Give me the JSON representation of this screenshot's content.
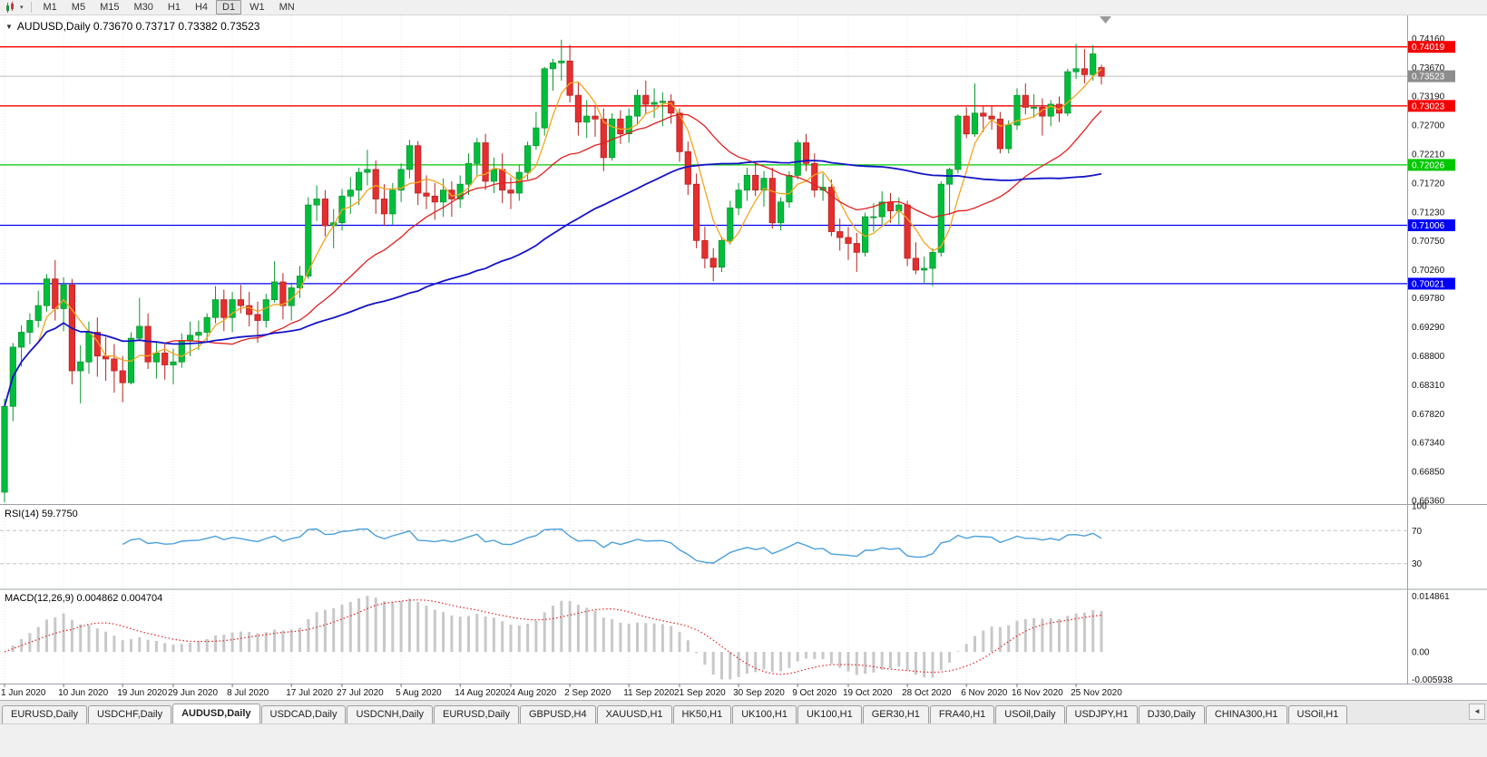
{
  "toolbar": {
    "timeframes": [
      "M1",
      "M5",
      "M15",
      "M30",
      "H1",
      "H4",
      "D1",
      "W1",
      "MN"
    ],
    "active": "D1",
    "dropdown_glyph": "▾"
  },
  "chart_data": {
    "type": "candlestick",
    "symbol": "AUDUSD",
    "timeframe": "Daily",
    "title": "AUDUSD,Daily  0.73670 0.73717 0.73382 0.73523",
    "collapse_glyph": "▼",
    "current_ohlc": {
      "open": 0.7367,
      "high": 0.73717,
      "low": 0.73382,
      "close": 0.73523
    },
    "y_range": [
      0.663,
      0.7455
    ],
    "colors": {
      "bull": "#00BE3C",
      "bull_edge": "#0A9630",
      "bear": "#E62E2E",
      "bear_edge": "#B42222",
      "grid": "#E6E6E6",
      "axis_text": "#141414"
    },
    "candles": [
      [
        0.665,
        0.6808,
        0.6633,
        0.6795
      ],
      [
        0.6795,
        0.6902,
        0.677,
        0.6895
      ],
      [
        0.6895,
        0.6932,
        0.6862,
        0.692
      ],
      [
        0.692,
        0.6952,
        0.69,
        0.694
      ],
      [
        0.694,
        0.699,
        0.6928,
        0.6965
      ],
      [
        0.6965,
        0.7018,
        0.6955,
        0.701
      ],
      [
        0.701,
        0.7042,
        0.694,
        0.696
      ],
      [
        0.696,
        0.7013,
        0.6922,
        0.7
      ],
      [
        0.7,
        0.701,
        0.6832,
        0.6855
      ],
      [
        0.6855,
        0.6898,
        0.68,
        0.687
      ],
      [
        0.687,
        0.6938,
        0.685,
        0.692
      ],
      [
        0.692,
        0.6945,
        0.6845,
        0.688
      ],
      [
        0.688,
        0.6912,
        0.6838,
        0.6875
      ],
      [
        0.6875,
        0.69,
        0.6818,
        0.6855
      ],
      [
        0.6855,
        0.688,
        0.6802,
        0.6835
      ],
      [
        0.6835,
        0.692,
        0.6832,
        0.691
      ],
      [
        0.691,
        0.6978,
        0.6905,
        0.693
      ],
      [
        0.693,
        0.6952,
        0.6858,
        0.687
      ],
      [
        0.687,
        0.6905,
        0.6842,
        0.6885
      ],
      [
        0.6885,
        0.69,
        0.684,
        0.6865
      ],
      [
        0.6865,
        0.6892,
        0.6832,
        0.687
      ],
      [
        0.687,
        0.6918,
        0.686,
        0.6905
      ],
      [
        0.6905,
        0.6938,
        0.688,
        0.6915
      ],
      [
        0.6915,
        0.694,
        0.689,
        0.692
      ],
      [
        0.692,
        0.6952,
        0.6902,
        0.6945
      ],
      [
        0.6945,
        0.6998,
        0.6935,
        0.6975
      ],
      [
        0.6975,
        0.6992,
        0.6922,
        0.6945
      ],
      [
        0.6945,
        0.6988,
        0.692,
        0.6975
      ],
      [
        0.6975,
        0.7,
        0.6952,
        0.6965
      ],
      [
        0.6965,
        0.6988,
        0.693,
        0.695
      ],
      [
        0.695,
        0.6972,
        0.6902,
        0.694
      ],
      [
        0.694,
        0.6985,
        0.6928,
        0.6975
      ],
      [
        0.6975,
        0.704,
        0.697,
        0.7005
      ],
      [
        0.7005,
        0.702,
        0.6942,
        0.6965
      ],
      [
        0.6965,
        0.7002,
        0.694,
        0.6995
      ],
      [
        0.6995,
        0.7032,
        0.6978,
        0.7015
      ],
      [
        0.7015,
        0.7148,
        0.701,
        0.7135
      ],
      [
        0.7135,
        0.7168,
        0.7108,
        0.7145
      ],
      [
        0.7145,
        0.716,
        0.7082,
        0.71
      ],
      [
        0.71,
        0.7128,
        0.7062,
        0.7105
      ],
      [
        0.7105,
        0.7162,
        0.7092,
        0.715
      ],
      [
        0.715,
        0.7182,
        0.712,
        0.716
      ],
      [
        0.716,
        0.7198,
        0.7135,
        0.719
      ],
      [
        0.719,
        0.7228,
        0.7168,
        0.7195
      ],
      [
        0.7195,
        0.721,
        0.712,
        0.7145
      ],
      [
        0.7145,
        0.717,
        0.71,
        0.712
      ],
      [
        0.712,
        0.7172,
        0.7102,
        0.716
      ],
      [
        0.716,
        0.7205,
        0.714,
        0.7195
      ],
      [
        0.7195,
        0.7245,
        0.718,
        0.7235
      ],
      [
        0.7235,
        0.7243,
        0.7135,
        0.7155
      ],
      [
        0.7155,
        0.7185,
        0.7128,
        0.715
      ],
      [
        0.715,
        0.7172,
        0.711,
        0.714
      ],
      [
        0.714,
        0.718,
        0.7115,
        0.716
      ],
      [
        0.716,
        0.7175,
        0.7115,
        0.7145
      ],
      [
        0.7145,
        0.7185,
        0.713,
        0.717
      ],
      [
        0.717,
        0.7222,
        0.7152,
        0.7205
      ],
      [
        0.7205,
        0.7248,
        0.7185,
        0.724
      ],
      [
        0.724,
        0.7255,
        0.716,
        0.7175
      ],
      [
        0.7175,
        0.7215,
        0.7155,
        0.7195
      ],
      [
        0.7195,
        0.7222,
        0.7138,
        0.716
      ],
      [
        0.716,
        0.7182,
        0.7128,
        0.7155
      ],
      [
        0.7155,
        0.7202,
        0.7142,
        0.719
      ],
      [
        0.719,
        0.7242,
        0.7178,
        0.7235
      ],
      [
        0.7235,
        0.7292,
        0.7228,
        0.7265
      ],
      [
        0.7265,
        0.7368,
        0.7252,
        0.7365
      ],
      [
        0.7365,
        0.7382,
        0.7328,
        0.7375
      ],
      [
        0.7375,
        0.7414,
        0.7345,
        0.7378
      ],
      [
        0.7378,
        0.7405,
        0.7308,
        0.732
      ],
      [
        0.732,
        0.7342,
        0.7252,
        0.7275
      ],
      [
        0.7275,
        0.7312,
        0.7248,
        0.7285
      ],
      [
        0.7285,
        0.7302,
        0.725,
        0.728
      ],
      [
        0.728,
        0.7298,
        0.7192,
        0.7215
      ],
      [
        0.7215,
        0.729,
        0.721,
        0.728
      ],
      [
        0.728,
        0.7295,
        0.7238,
        0.7255
      ],
      [
        0.7255,
        0.7298,
        0.724,
        0.7285
      ],
      [
        0.7285,
        0.733,
        0.7272,
        0.732
      ],
      [
        0.732,
        0.7345,
        0.7288,
        0.7305
      ],
      [
        0.7305,
        0.7332,
        0.7282,
        0.7308
      ],
      [
        0.7308,
        0.7325,
        0.7268,
        0.731
      ],
      [
        0.731,
        0.7322,
        0.7272,
        0.729
      ],
      [
        0.729,
        0.7298,
        0.7208,
        0.7225
      ],
      [
        0.7225,
        0.7242,
        0.7152,
        0.717
      ],
      [
        0.717,
        0.7188,
        0.7062,
        0.7075
      ],
      [
        0.7075,
        0.7098,
        0.7028,
        0.7045
      ],
      [
        0.7045,
        0.7062,
        0.7006,
        0.703
      ],
      [
        0.703,
        0.7082,
        0.7022,
        0.7075
      ],
      [
        0.7075,
        0.7142,
        0.7068,
        0.713
      ],
      [
        0.713,
        0.7172,
        0.7118,
        0.716
      ],
      [
        0.716,
        0.7198,
        0.7142,
        0.7185
      ],
      [
        0.7185,
        0.7208,
        0.715,
        0.716
      ],
      [
        0.716,
        0.7192,
        0.7132,
        0.718
      ],
      [
        0.718,
        0.7198,
        0.7095,
        0.7105
      ],
      [
        0.7105,
        0.7148,
        0.7092,
        0.714
      ],
      [
        0.714,
        0.7192,
        0.713,
        0.7185
      ],
      [
        0.7185,
        0.7245,
        0.7178,
        0.724
      ],
      [
        0.724,
        0.7255,
        0.7192,
        0.7205
      ],
      [
        0.7205,
        0.7222,
        0.7148,
        0.716
      ],
      [
        0.716,
        0.7188,
        0.7142,
        0.7165
      ],
      [
        0.7165,
        0.7178,
        0.7082,
        0.709
      ],
      [
        0.709,
        0.7112,
        0.7058,
        0.708
      ],
      [
        0.708,
        0.7098,
        0.7042,
        0.707
      ],
      [
        0.707,
        0.7088,
        0.7022,
        0.7055
      ],
      [
        0.7055,
        0.7122,
        0.7048,
        0.7115
      ],
      [
        0.7115,
        0.7138,
        0.709,
        0.7115
      ],
      [
        0.7115,
        0.7158,
        0.7102,
        0.714
      ],
      [
        0.714,
        0.7155,
        0.7105,
        0.7125
      ],
      [
        0.7125,
        0.7148,
        0.7102,
        0.7135
      ],
      [
        0.7135,
        0.7142,
        0.7032,
        0.7045
      ],
      [
        0.7045,
        0.7072,
        0.7018,
        0.7025
      ],
      [
        0.7025,
        0.7048,
        0.7002,
        0.7028
      ],
      [
        0.7028,
        0.7062,
        0.6998,
        0.7055
      ],
      [
        0.7055,
        0.7175,
        0.7048,
        0.717
      ],
      [
        0.717,
        0.7198,
        0.7118,
        0.7195
      ],
      [
        0.7195,
        0.7288,
        0.7188,
        0.7285
      ],
      [
        0.7285,
        0.73,
        0.7248,
        0.7255
      ],
      [
        0.7255,
        0.734,
        0.725,
        0.729
      ],
      [
        0.729,
        0.7302,
        0.7258,
        0.7285
      ],
      [
        0.7285,
        0.7302,
        0.7262,
        0.728
      ],
      [
        0.728,
        0.7292,
        0.7222,
        0.723
      ],
      [
        0.723,
        0.7278,
        0.7222,
        0.727
      ],
      [
        0.727,
        0.7332,
        0.7262,
        0.732
      ],
      [
        0.732,
        0.734,
        0.7288,
        0.73
      ],
      [
        0.73,
        0.7322,
        0.7282,
        0.73
      ],
      [
        0.73,
        0.7315,
        0.7252,
        0.7285
      ],
      [
        0.7285,
        0.7312,
        0.7268,
        0.7305
      ],
      [
        0.7305,
        0.7318,
        0.7275,
        0.729
      ],
      [
        0.729,
        0.7365,
        0.7285,
        0.736
      ],
      [
        0.736,
        0.7407,
        0.7348,
        0.7365
      ],
      [
        0.7365,
        0.7398,
        0.734,
        0.7355
      ],
      [
        0.7355,
        0.7405,
        0.7345,
        0.739
      ],
      [
        0.7367,
        0.73717,
        0.73382,
        0.73523
      ]
    ],
    "x_labels": [
      [
        0,
        "1 Jun 2020"
      ],
      [
        7,
        "10 Jun 2020"
      ],
      [
        14,
        "19 Jun 2020"
      ],
      [
        20,
        "29 Jun 2020"
      ],
      [
        27,
        "8 Jul 2020"
      ],
      [
        34,
        "17 Jul 2020"
      ],
      [
        40,
        "27 Jul 2020"
      ],
      [
        47,
        "5 Aug 2020"
      ],
      [
        54,
        "14 Aug 2020"
      ],
      [
        60,
        "24 Aug 2020"
      ],
      [
        67,
        "2 Sep 2020"
      ],
      [
        74,
        "11 Sep 2020"
      ],
      [
        80,
        "21 Sep 2020"
      ],
      [
        87,
        "30 Sep 2020"
      ],
      [
        94,
        "9 Oct 2020"
      ],
      [
        100,
        "19 Oct 2020"
      ],
      [
        107,
        "28 Oct 2020"
      ],
      [
        114,
        "6 Nov 2020"
      ],
      [
        120,
        "16 Nov 2020"
      ],
      [
        127,
        "25 Nov 2020"
      ]
    ],
    "price_ticks": [
      "0.74160",
      "0.73670",
      "0.73190",
      "0.72700",
      "0.72210",
      "0.71720",
      "0.71230",
      "0.70750",
      "0.70260",
      "0.69780",
      "0.69290",
      "0.68800",
      "0.68310",
      "0.67820",
      "0.67340",
      "0.66850",
      "0.66360"
    ],
    "hlines": [
      {
        "value": 0.74019,
        "label": "0.74019",
        "color": "#F40000"
      },
      {
        "value": 0.73023,
        "label": "0.73023",
        "color": "#F40000"
      },
      {
        "value": 0.72026,
        "label": "0.72026",
        "color": "#00C800"
      },
      {
        "value": 0.71006,
        "label": "0.71006",
        "color": "#0000F4"
      },
      {
        "value": 0.70021,
        "label": "0.70021",
        "color": "#0000F4"
      }
    ],
    "current_price": {
      "value": 0.73523,
      "label": "0.73523",
      "line_color": "#BEBEBE",
      "tag_bg": "#8C8C8C"
    },
    "moving_averages": [
      {
        "period": 5,
        "color": "#F2A51E"
      },
      {
        "period": 20,
        "color": "#E02020"
      },
      {
        "period": 50,
        "color": "#1414C8"
      }
    ],
    "indicators": {
      "rsi": {
        "label_full": "RSI(14) 59.7750",
        "period": 14,
        "value": 59.775,
        "levels": [
          100,
          70,
          30
        ],
        "line_color": "#4AA0DC"
      },
      "macd": {
        "label_full": "MACD(12,26,9) 0.004862 0.004704",
        "fast": 12,
        "slow": 26,
        "signal": 9,
        "value": 0.004862,
        "signal_value": 0.004704,
        "axis_labels": [
          "0.014861",
          "0.00",
          "-0.005938"
        ],
        "hist_color": "#C8C8C8",
        "signal_color": "#E02020"
      }
    }
  },
  "tab_bar": {
    "items": [
      "EURUSD,Daily",
      "USDCHF,Daily",
      "AUDUSD,Daily",
      "USDCAD,Daily",
      "USDCNH,Daily",
      "EURUSD,Daily",
      "GBPUSD,H4",
      "XAUUSD,H1",
      "HK50,H1",
      "UK100,H1",
      "UK100,H1",
      "GER30,H1",
      "FRA40,H1",
      "USOil,Daily",
      "USDJPY,H1",
      "DJ30,Daily",
      "CHINA300,H1",
      "USOil,H1"
    ],
    "active_index": 2,
    "scroll_left": "◄"
  }
}
